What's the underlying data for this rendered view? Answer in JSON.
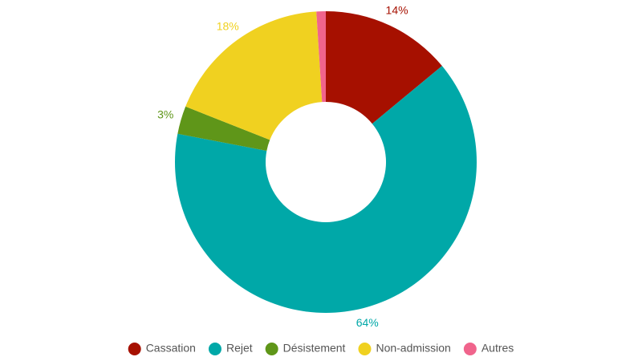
{
  "chart_data": {
    "type": "pie",
    "categories": [
      "Cassation",
      "Rejet",
      "Désistement",
      "Non-admission",
      "Autres"
    ],
    "values": [
      14,
      64,
      3,
      18,
      1
    ],
    "value_labels": [
      "14%",
      "64%",
      "3%",
      "18%",
      null
    ],
    "colors": [
      "#a61000",
      "#00a8a8",
      "#5f9619",
      "#f0d120",
      "#f0648c"
    ],
    "legend": "bottom"
  }
}
